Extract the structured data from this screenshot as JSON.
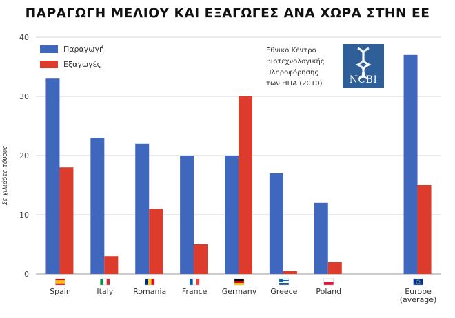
{
  "title": "ΠΑΡΑΓΩΓΗ ΜΕΛΙΟΥ ΚΑΙ ΕΞΑΓΩΓΕΣ ΑΝΑ ΧΩΡΑ ΣΤΗΝ ΕΕ",
  "source_lines": [
    "Εθνικό Κέντρο",
    "Βιοτεχνολογικής",
    "Πληροφόρησης",
    "των ΗΠΑ (2010)"
  ],
  "logo_text": "NCBI",
  "colors": {
    "production": "#3f67be",
    "exports": "#dd3b2c",
    "logo": "#2f5f98"
  },
  "chart_data": {
    "type": "bar",
    "title": "ΠΑΡΑΓΩΓΗ ΜΕΛΙΟΥ ΚΑΙ ΕΞΑΓΩΓΕΣ ΑΝΑ ΧΩΡΑ ΣΤΗΝ ΕΕ",
    "ylabel": "Σε χιλιάδες τόνους",
    "xlabel": "",
    "ylim": [
      0,
      40
    ],
    "yticks": [
      0,
      10,
      20,
      30,
      40
    ],
    "grid": true,
    "legend": "top-left",
    "categories": [
      "Spain",
      "Italy",
      "Romania",
      "France",
      "Germany",
      "Greece",
      "Poland",
      "",
      "Europe\n(average)"
    ],
    "category_icons": [
      "flag-spain-icon",
      "flag-italy-icon",
      "flag-romania-icon",
      "flag-france-icon",
      "flag-germany-icon",
      "flag-greece-icon",
      "flag-poland-icon",
      "",
      "flag-eu-icon"
    ],
    "series": [
      {
        "name": "Παραγωγή",
        "values": [
          33,
          23,
          22,
          20,
          20,
          17,
          12,
          null,
          37
        ]
      },
      {
        "name": "Εξαγωγές",
        "values": [
          18,
          3,
          11,
          5,
          30,
          0.5,
          2,
          null,
          15
        ]
      }
    ]
  }
}
